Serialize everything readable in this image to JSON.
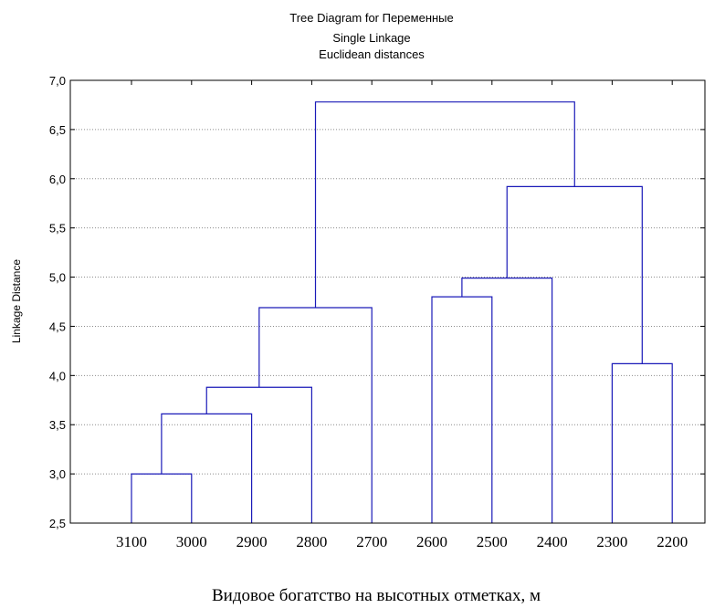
{
  "chart_data": {
    "type": "dendrogram",
    "title": "Tree Diagram for  Переменные",
    "subtitle_1": "Single Linkage",
    "subtitle_2": "Euclidean distances",
    "ylabel": "Linkage Distance",
    "xlabel": "Видовое богатство на высотных отметках, м",
    "ylim": [
      2.5,
      7.0
    ],
    "yticks": [
      "2,5",
      "3,0",
      "3,5",
      "4,0",
      "4,5",
      "5,0",
      "5,5",
      "6,0",
      "6,5",
      "7,0"
    ],
    "grid": true,
    "leaves": [
      "3100",
      "3000",
      "2900",
      "2800",
      "2700",
      "2600",
      "2500",
      "2400",
      "2300",
      "2200"
    ],
    "merges": [
      {
        "id": "A",
        "left": "3100",
        "right": "3000",
        "distance": 3.0
      },
      {
        "id": "B",
        "left": "A",
        "right": "2900",
        "distance": 3.61
      },
      {
        "id": "C",
        "left": "B",
        "right": "2800",
        "distance": 3.88
      },
      {
        "id": "D",
        "left": "C",
        "right": "2700",
        "distance": 4.69
      },
      {
        "id": "E",
        "left": "2600",
        "right": "2500",
        "distance": 4.8
      },
      {
        "id": "F",
        "left": "E",
        "right": "2400",
        "distance": 4.99
      },
      {
        "id": "G",
        "left": "2300",
        "right": "2200",
        "distance": 4.12
      },
      {
        "id": "H",
        "left": "F",
        "right": "G",
        "distance": 5.92
      },
      {
        "id": "I",
        "left": "D",
        "right": "H",
        "distance": 6.78
      }
    ],
    "colors": {
      "branch": "#1a1ab8",
      "grid": "#8c8c8c",
      "axis": "#000000"
    }
  }
}
